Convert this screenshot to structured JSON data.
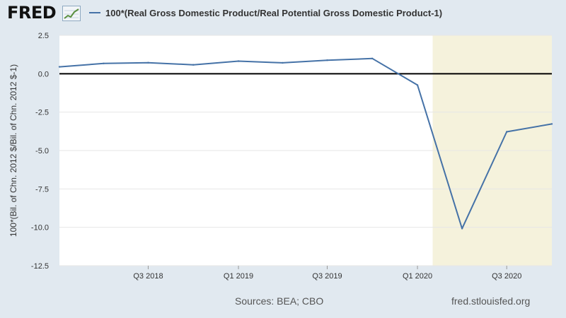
{
  "header": {
    "logo_text": "FRED",
    "legend_label": "100*(Real Gross Domestic Product/Real Potential Gross Domestic Product-1)"
  },
  "footer": {
    "sources": "Sources: BEA; CBO",
    "url": "fred.stlouisfed.org"
  },
  "colors": {
    "series": "#4572a7",
    "recession": "#f5f2dc",
    "background": "#e1e9f0",
    "plot": "#ffffff"
  },
  "chart_data": {
    "type": "line",
    "title": "",
    "xlabel": "",
    "ylabel": "100*(Bil. of Chn. 2012 $/Bil. of Chn. 2012 $-1)",
    "ylim": [
      -12.5,
      2.5
    ],
    "yticks": [
      2.5,
      0.0,
      -2.5,
      -5.0,
      -7.5,
      -10.0,
      -12.5
    ],
    "ytick_labels": [
      "2.5",
      "0.0",
      "-2.5",
      "-5.0",
      "-7.5",
      "-10.0",
      "-12.5"
    ],
    "xticks": [
      "Q3 2018",
      "Q1 2019",
      "Q3 2019",
      "Q1 2020",
      "Q3 2020"
    ],
    "grid": "horizontal",
    "series": [
      {
        "name": "100*(Real Gross Domestic Product/Real Potential Gross Domestic Product-1)",
        "x": [
          "2018-01-01",
          "2018-04-01",
          "2018-07-01",
          "2018-10-01",
          "2019-01-01",
          "2019-04-01",
          "2019-07-01",
          "2019-10-01",
          "2020-01-01",
          "2020-04-01",
          "2020-07-01",
          "2020-10-01"
        ],
        "values": [
          0.45,
          0.67,
          0.72,
          0.58,
          0.82,
          0.71,
          0.88,
          0.99,
          -0.74,
          -10.08,
          -3.78,
          -3.27
        ]
      }
    ],
    "recession": {
      "start": "2020-02-01",
      "end": "2020-10-01"
    },
    "reference_line": 0
  }
}
